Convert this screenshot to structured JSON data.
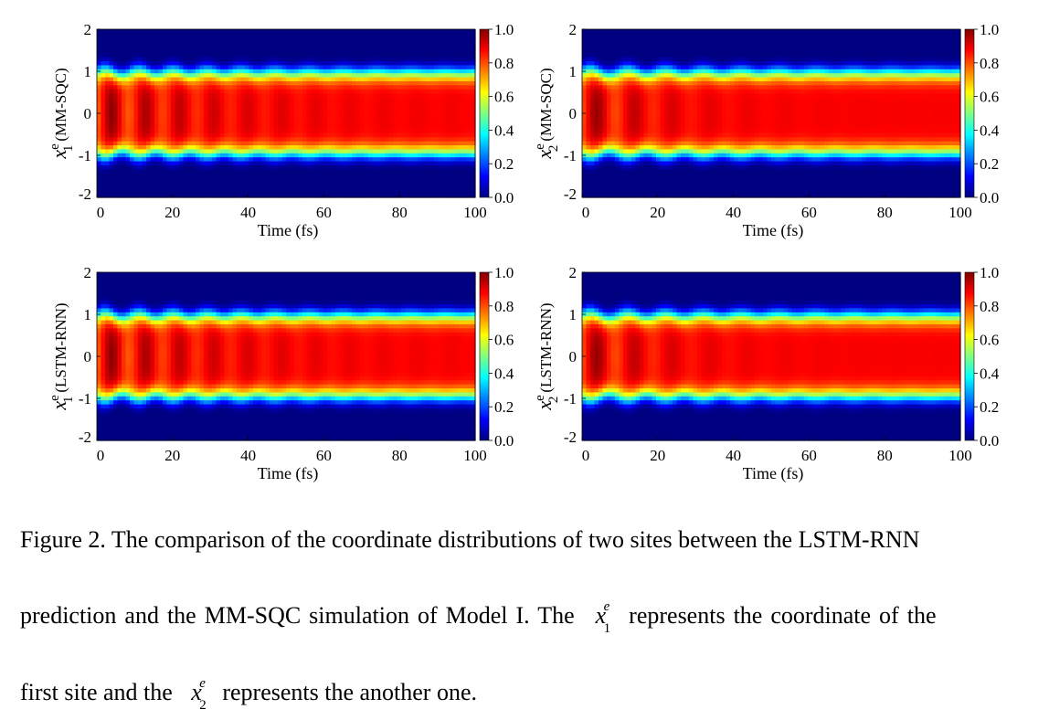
{
  "chart_data": [
    {
      "type": "heatmap",
      "id": "x1_mmsqc",
      "ylabel": "x",
      "ylabel_super": "e",
      "ylabel_sub": "1",
      "ylabel_note": "(MM-SQC)",
      "xlabel": "Time (fs)",
      "xlim": [
        0,
        100
      ],
      "ylim": [
        -2,
        2
      ],
      "x_ticks": [
        "0",
        "20",
        "40",
        "60",
        "80",
        "100"
      ],
      "y_ticks": [
        "-2",
        "-1",
        "0",
        "1",
        "2"
      ],
      "colorbar_ticks": [
        "0.0",
        "0.2",
        "0.4",
        "0.6",
        "0.8",
        "1.0"
      ],
      "colorbar_range": [
        0.0,
        1.0
      ],
      "colormap": "jet",
      "show_xlabel": true,
      "oscillation_period_fs": 9,
      "oscillation_decay_fs": 30
    },
    {
      "type": "heatmap",
      "id": "x2_mmsqc",
      "ylabel": "x",
      "ylabel_super": "e",
      "ylabel_sub": "2",
      "ylabel_note": "(MM-SQC)",
      "xlabel": "Time (fs)",
      "xlim": [
        0,
        100
      ],
      "ylim": [
        -2,
        2
      ],
      "x_ticks": [
        "0",
        "20",
        "40",
        "60",
        "80",
        "100"
      ],
      "y_ticks": [
        "-2",
        "-1",
        "0",
        "1",
        "2"
      ],
      "colorbar_ticks": [
        "0.0",
        "0.2",
        "0.4",
        "0.6",
        "0.8",
        "1.0"
      ],
      "colorbar_range": [
        0.0,
        1.0
      ],
      "colormap": "jet",
      "show_xlabel": true,
      "oscillation_period_fs": 10,
      "oscillation_decay_fs": 18
    },
    {
      "type": "heatmap",
      "id": "x1_lstm",
      "ylabel": "x",
      "ylabel_super": "e",
      "ylabel_sub": "1",
      "ylabel_note": "(LSTM-RNN)",
      "xlabel": "Time (fs)",
      "xlim": [
        0,
        100
      ],
      "ylim": [
        -2,
        2
      ],
      "x_ticks": [
        "0",
        "20",
        "40",
        "60",
        "80",
        "100"
      ],
      "y_ticks": [
        "-2",
        "-1",
        "0",
        "1",
        "2"
      ],
      "colorbar_ticks": [
        "0.0",
        "0.2",
        "0.4",
        "0.6",
        "0.8",
        "1.0"
      ],
      "colorbar_range": [
        0.0,
        1.0
      ],
      "colormap": "jet",
      "show_xlabel": true,
      "oscillation_period_fs": 9,
      "oscillation_decay_fs": 30
    },
    {
      "type": "heatmap",
      "id": "x2_lstm",
      "ylabel": "x",
      "ylabel_super": "e",
      "ylabel_sub": "2",
      "ylabel_note": "(LSTM-RNN)",
      "xlabel": "Time (fs)",
      "xlim": [
        0,
        100
      ],
      "ylim": [
        -2,
        2
      ],
      "x_ticks": [
        "0",
        "20",
        "40",
        "60",
        "80",
        "100"
      ],
      "y_ticks": [
        "-2",
        "-1",
        "0",
        "1",
        "2"
      ],
      "colorbar_ticks": [
        "0.0",
        "0.2",
        "0.4",
        "0.6",
        "0.8",
        "1.0"
      ],
      "colorbar_range": [
        0.0,
        1.0
      ],
      "colormap": "jet",
      "show_xlabel": true,
      "oscillation_period_fs": 10,
      "oscillation_decay_fs": 18
    }
  ],
  "caption": {
    "line1": "Figure 2. The comparison of the coordinate distributions of two sites between the LSTM-RNN",
    "line2_a": "prediction and the MM-SQC simulation of Model I. The",
    "line2_var": "x",
    "line2_sup": "e",
    "line2_sub": "1",
    "line2_b": "represents the coordinate of the",
    "line3_a": "first site and the",
    "line3_var": "x",
    "line3_sup": "e",
    "line3_sub": "2",
    "line3_b": "represents the another one."
  }
}
